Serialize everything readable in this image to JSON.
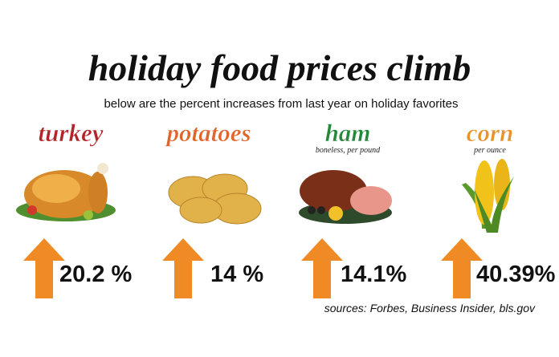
{
  "title": "holiday food prices climb",
  "subtitle": "below are the percent increases from last year on holiday favorites",
  "items": [
    {
      "name": "turkey",
      "increase": "20.2 %"
    },
    {
      "name": "potatoes",
      "increase": "14 %"
    },
    {
      "name": "ham",
      "note": "boneless, per pound",
      "increase": "14.1%"
    },
    {
      "name": "corn",
      "note": "per ounce",
      "increase": "40.39%"
    }
  ],
  "sources": "sources: Forbes, Business Insider, bls.gov"
}
